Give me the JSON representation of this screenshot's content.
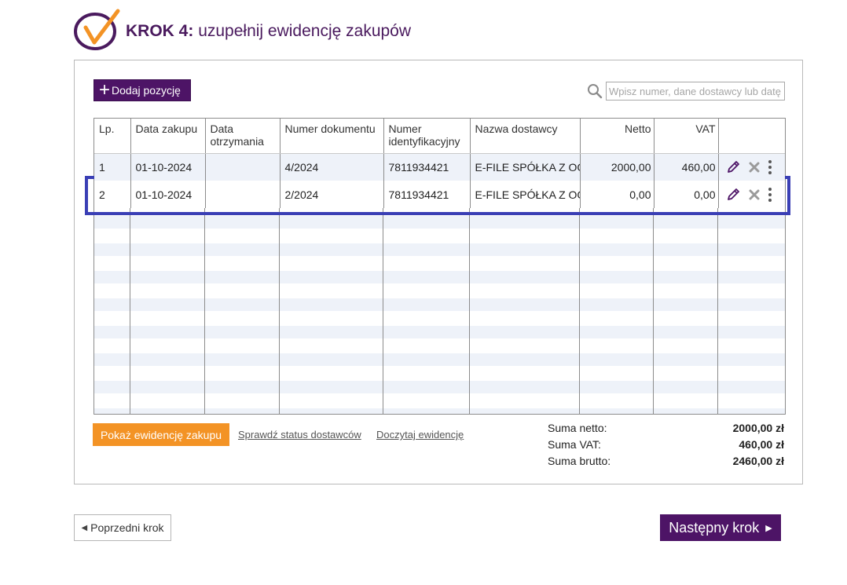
{
  "header": {
    "step_label": "KROK 4:",
    "title_text": "uzupełnij ewidencję zakupów"
  },
  "toolbar": {
    "add_button_label": "Dodaj pozycję",
    "search_placeholder": "Wpisz numer, dane dostawcy lub datę"
  },
  "table": {
    "columns": [
      "Lp.",
      "Data zakupu",
      "Data otrzymania",
      "Numer dokumentu",
      "Numer identyfikacyjny",
      "Nazwa dostawcy",
      "Netto",
      "VAT"
    ],
    "rows": [
      {
        "lp": "1",
        "data_zakupu": "01-10-2024",
        "data_otrzymania": "",
        "numer_dokumentu": "4/2024",
        "numer_identyfikacyjny": "7811934421",
        "nazwa_dostawcy": "E-FILE SPÓŁKA Z OGRANICZONĄ",
        "netto": "2000,00",
        "vat": "460,00"
      },
      {
        "lp": "2",
        "data_zakupu": "01-10-2024",
        "data_otrzymania": "",
        "numer_dokumentu": "2/2024",
        "numer_identyfikacyjny": "7811934421",
        "nazwa_dostawcy": "E-FILE SPÓŁKA Z OGRANICZONĄ",
        "netto": "0,00",
        "vat": "0,00"
      }
    ]
  },
  "footer": {
    "show_register_button": "Pokaż ewidencję zakupu",
    "check_suppliers_link": "Sprawdź status dostawców",
    "reload_link": "Doczytaj ewidencję",
    "sum_netto_label": "Suma netto:",
    "sum_netto_value": "2000,00 zł",
    "sum_vat_label": "Suma VAT:",
    "sum_vat_value": "460,00 zł",
    "sum_brutto_label": "Suma brutto:",
    "sum_brutto_value": "2460,00 zł"
  },
  "navigation": {
    "prev_label": "Poprzedni krok",
    "next_label": "Następny krok"
  },
  "colors": {
    "brand_purple": "#4d1466",
    "accent_orange": "#f39325",
    "highlight_blue": "#3a3fb5",
    "stripe": "#eef2f9"
  },
  "icons": {
    "logo": "checkmark-circle-logo",
    "search": "search-icon",
    "edit": "pencil-icon",
    "delete": "x-icon",
    "more": "kebab-menu-icon"
  }
}
